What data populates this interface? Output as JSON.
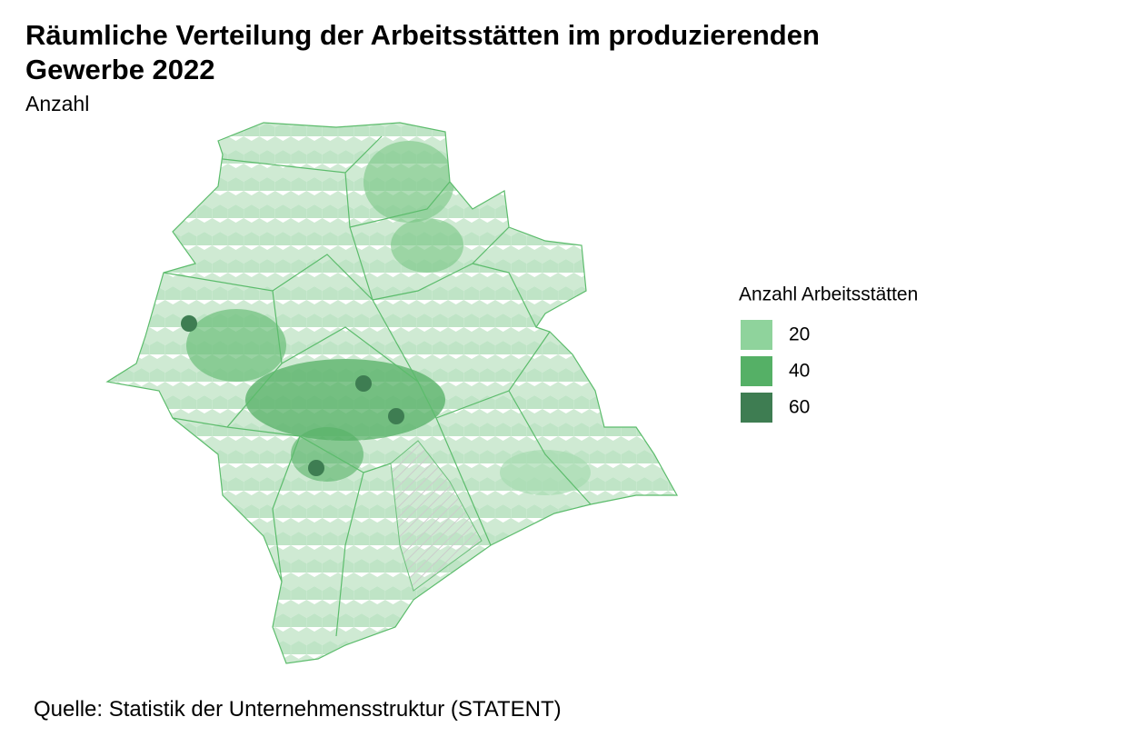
{
  "title": "Räumliche Verteilung der Arbeitsstätten im produzierenden Gewerbe 2022",
  "subtitle": "Anzahl",
  "legend": {
    "title": "Anzahl Arbeitsstätten",
    "items": [
      {
        "value": 20,
        "color": "#8fd39c"
      },
      {
        "value": 40,
        "color": "#55b066"
      },
      {
        "value": 60,
        "color": "#3e7d52"
      }
    ]
  },
  "source": "Quelle: Statistik der Unternehmensstruktur (STATENT)"
}
